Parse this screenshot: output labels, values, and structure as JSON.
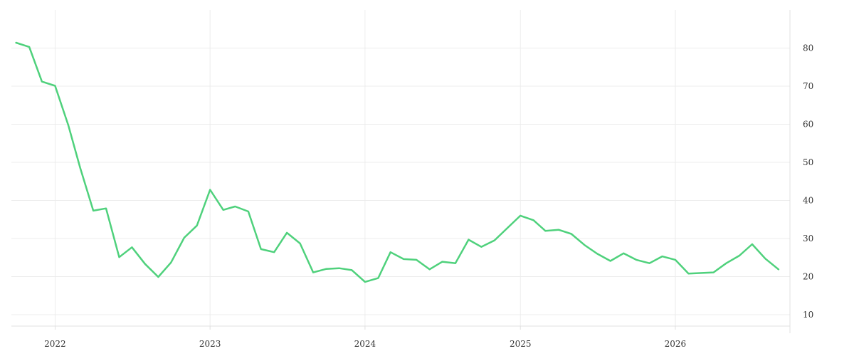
{
  "chart_data": {
    "type": "line",
    "title": "",
    "xlabel": "",
    "ylabel": "",
    "x_ticks": [
      "2022",
      "2023",
      "2024",
      "2025",
      "2026"
    ],
    "y_ticks": [
      10,
      20,
      30,
      40,
      50,
      60,
      70,
      80
    ],
    "xlim": [
      "2021-09-20",
      "2026-09-28"
    ],
    "ylim": [
      7,
      90
    ],
    "y_axis_position": "right",
    "grid": true,
    "colors": {
      "line": "#4fd17c",
      "grid": "#ececec",
      "axis": "#e0e0e0",
      "tick_text": "#333333"
    },
    "series": [
      {
        "x": [
          "2021-10-01",
          "2021-11-01",
          "2021-12-01",
          "2022-01-01",
          "2022-02-01",
          "2022-03-01",
          "2022-04-01",
          "2022-05-01",
          "2022-06-01",
          "2022-07-01",
          "2022-08-01",
          "2022-09-01",
          "2022-10-01",
          "2022-11-01",
          "2022-12-01",
          "2023-01-01",
          "2023-02-01",
          "2023-03-01",
          "2023-04-01",
          "2023-05-01",
          "2023-06-01",
          "2023-07-01",
          "2023-08-01",
          "2023-09-01",
          "2023-10-01",
          "2023-11-01",
          "2023-12-01",
          "2024-01-01",
          "2024-02-01",
          "2024-03-01",
          "2024-04-01",
          "2024-05-01",
          "2024-06-01",
          "2024-07-01",
          "2024-08-01",
          "2024-09-01",
          "2024-10-01",
          "2024-11-01",
          "2024-12-01",
          "2025-01-01",
          "2025-02-01",
          "2025-03-01",
          "2025-04-01",
          "2025-05-01",
          "2025-06-01",
          "2025-07-01",
          "2025-08-01",
          "2025-09-01",
          "2025-10-01",
          "2025-11-01",
          "2025-12-01",
          "2026-01-01",
          "2026-02-01",
          "2026-04-01",
          "2026-05-01",
          "2026-06-01",
          "2026-07-01",
          "2026-08-01",
          "2026-09-01"
        ],
        "values": [
          81.4,
          80.3,
          71.2,
          70.1,
          59.8,
          48.6,
          37.3,
          37.9,
          25.1,
          27.7,
          23.3,
          19.9,
          23.7,
          30.2,
          33.4,
          42.8,
          37.5,
          38.4,
          37.1,
          27.2,
          26.4,
          31.5,
          28.7,
          21.1,
          22.0,
          22.2,
          21.7,
          18.6,
          19.6,
          26.4,
          24.6,
          24.4,
          21.9,
          23.9,
          23.5,
          29.7,
          27.8,
          29.5,
          32.7,
          36.0,
          34.8,
          32.0,
          32.3,
          31.2,
          28.3,
          26.0,
          24.1,
          26.1,
          24.4,
          23.5,
          25.3,
          24.4,
          20.8,
          21.1,
          23.5,
          25.5,
          28.5,
          24.7,
          21.9
        ]
      }
    ]
  }
}
